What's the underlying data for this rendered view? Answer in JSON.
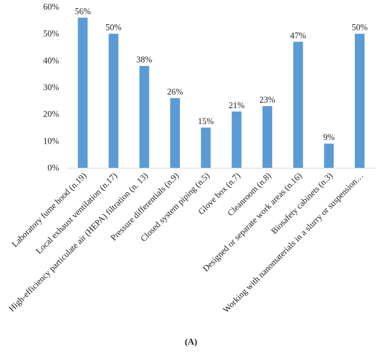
{
  "chart_data": {
    "type": "bar",
    "categories": [
      "Laboratory fume hood (n.19)",
      "Local exhaust ventilation (n.17)",
      "High-efficiency particulate air (HEPA) filtration (n. 13)",
      "Pressure differentials (n.9)",
      "Closed system piping (n.5)",
      "Glove box (n.7)",
      "Cleanroom (n.8)",
      "Designed or separate work areas (n.16)",
      "Biosafety cabinets (n.3)",
      "Working with nanomaterials in a slurry or suspension…"
    ],
    "values": [
      56,
      50,
      38,
      26,
      15,
      21,
      23,
      47,
      9,
      50
    ],
    "data_labels": [
      "56%",
      "50%",
      "38%",
      "26%",
      "15%",
      "21%",
      "23%",
      "47%",
      "9%",
      "50%"
    ],
    "yticks": [
      "0%",
      "10%",
      "20%",
      "30%",
      "40%",
      "50%",
      "60%"
    ],
    "ylim": [
      0,
      60
    ],
    "ystep": 10,
    "grid": false,
    "bar_color": "#5B9BD5",
    "caption": "(A)"
  }
}
